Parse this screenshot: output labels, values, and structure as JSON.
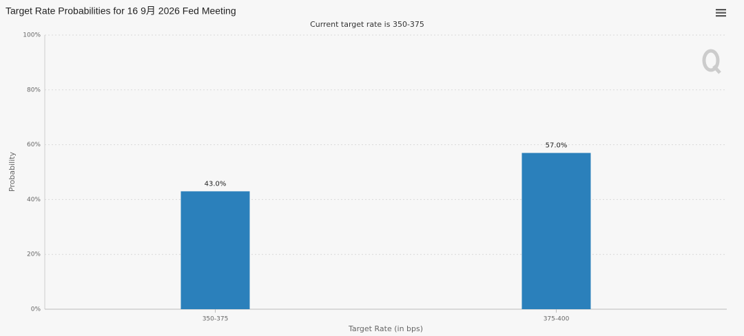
{
  "chart_data": {
    "type": "bar",
    "title": "Target Rate Probabilities for 16 9月 2026 Fed Meeting",
    "subtitle": "Current target rate is 350-375",
    "x_label": "Target Rate (in bps)",
    "y_label": "Probability",
    "categories": [
      "350-375",
      "375-400"
    ],
    "values": [
      43,
      57
    ],
    "value_labels": [
      "43.0%",
      "57.0%"
    ],
    "color": "#2b80bb",
    "ylim": [
      0,
      100
    ],
    "yticks": [
      {
        "value": 0,
        "label": "0%"
      },
      {
        "value": 20,
        "label": "20%"
      },
      {
        "value": 40,
        "label": "40%"
      },
      {
        "value": 60,
        "label": "60%"
      },
      {
        "value": 80,
        "label": "80%"
      },
      {
        "value": 100,
        "label": "100%"
      }
    ],
    "grid": true
  }
}
